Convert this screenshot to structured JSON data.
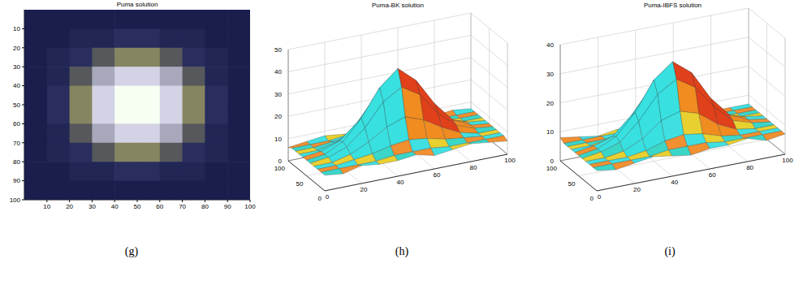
{
  "chart_data": [
    {
      "type": "heatmap",
      "title": "Puma solution",
      "panel": "(g)",
      "x": [
        5,
        15,
        25,
        35,
        45,
        55,
        65,
        75,
        85,
        95
      ],
      "y": [
        5,
        15,
        25,
        35,
        45,
        55,
        65,
        75,
        85,
        95
      ],
      "xlim": [
        0,
        100
      ],
      "ylim": [
        0,
        100
      ],
      "xticks": [
        10,
        20,
        30,
        40,
        50,
        60,
        70,
        80,
        90,
        100
      ],
      "yticks": [
        10,
        20,
        30,
        40,
        50,
        60,
        70,
        80,
        90,
        100
      ],
      "cells": [
        [
          5,
          5,
          5,
          5,
          5,
          5,
          5,
          5,
          5,
          5
        ],
        [
          5,
          5,
          6,
          6,
          7,
          7,
          6,
          6,
          5,
          5
        ],
        [
          5,
          6,
          7,
          10,
          13,
          13,
          10,
          7,
          6,
          5
        ],
        [
          5,
          6,
          10,
          18,
          25,
          25,
          18,
          10,
          6,
          5
        ],
        [
          5,
          7,
          13,
          25,
          36,
          36,
          25,
          13,
          7,
          5
        ],
        [
          5,
          7,
          13,
          25,
          36,
          36,
          25,
          13,
          7,
          5
        ],
        [
          5,
          6,
          10,
          18,
          25,
          25,
          18,
          10,
          6,
          5
        ],
        [
          5,
          6,
          7,
          10,
          13,
          13,
          10,
          7,
          6,
          5
        ],
        [
          5,
          5,
          6,
          6,
          7,
          7,
          6,
          6,
          5,
          5
        ],
        [
          5,
          5,
          5,
          5,
          5,
          5,
          5,
          5,
          5,
          5
        ]
      ]
    },
    {
      "type": "surface",
      "title": "Puma-BK solution",
      "panel": "(h)",
      "x": [
        0,
        10,
        20,
        30,
        40,
        50,
        60,
        70,
        80,
        90,
        100
      ],
      "y": [
        0,
        10,
        20,
        30,
        40,
        50,
        60,
        70,
        80,
        90,
        100
      ],
      "xlim": [
        0,
        100
      ],
      "ylim": [
        0,
        100
      ],
      "zlim": [
        0,
        50
      ],
      "xticks": [
        0,
        20,
        40,
        60,
        80,
        100
      ],
      "yticks": [
        0,
        50,
        100
      ],
      "zticks": [
        0,
        10,
        20,
        30,
        40,
        50
      ],
      "grid": true,
      "z": [
        [
          7,
          6,
          8,
          7,
          7,
          8,
          6,
          7,
          8,
          7,
          6
        ],
        [
          7,
          7,
          7,
          7,
          8,
          8,
          8,
          7,
          7,
          7,
          7
        ],
        [
          7,
          7,
          8,
          9,
          11,
          12,
          11,
          9,
          8,
          7,
          7
        ],
        [
          7,
          7,
          9,
          13,
          18,
          21,
          18,
          13,
          9,
          7,
          7
        ],
        [
          7,
          8,
          11,
          18,
          28,
          33,
          28,
          18,
          11,
          8,
          7
        ],
        [
          7,
          8,
          12,
          21,
          33,
          40,
          33,
          21,
          12,
          8,
          7
        ],
        [
          7,
          8,
          11,
          18,
          28,
          33,
          29,
          18,
          11,
          8,
          7
        ],
        [
          7,
          7,
          9,
          13,
          18,
          21,
          18,
          14,
          9,
          7,
          7
        ],
        [
          7,
          7,
          8,
          9,
          11,
          12,
          11,
          9,
          8,
          7,
          7
        ],
        [
          7,
          7,
          7,
          8,
          8,
          8,
          8,
          7,
          7,
          7,
          7
        ],
        [
          6,
          7,
          8,
          7,
          6,
          7,
          8,
          7,
          7,
          8,
          7
        ]
      ]
    },
    {
      "type": "surface",
      "title": "Puma-IBFS solution",
      "panel": "(i)",
      "x": [
        0,
        10,
        20,
        30,
        40,
        50,
        60,
        70,
        80,
        90,
        100
      ],
      "y": [
        0,
        10,
        20,
        30,
        40,
        50,
        60,
        70,
        80,
        90,
        100
      ],
      "xlim": [
        0,
        100
      ],
      "ylim": [
        0,
        100
      ],
      "zlim": [
        0,
        40
      ],
      "xticks": [
        0,
        20,
        40,
        60,
        80,
        100
      ],
      "yticks": [
        0,
        50,
        100
      ],
      "zticks": [
        0,
        10,
        20,
        30,
        40
      ],
      "grid": true,
      "z": [
        [
          7,
          6,
          7,
          8,
          7,
          6,
          7,
          7,
          8,
          6,
          7
        ],
        [
          7,
          7,
          7,
          7,
          8,
          8,
          8,
          7,
          7,
          7,
          7
        ],
        [
          7,
          7,
          7,
          8,
          10,
          11,
          10,
          8,
          7,
          7,
          7
        ],
        [
          7,
          7,
          8,
          11,
          16,
          18,
          16,
          11,
          8,
          7,
          7
        ],
        [
          7,
          8,
          10,
          16,
          24,
          28,
          24,
          16,
          10,
          8,
          7
        ],
        [
          7,
          8,
          11,
          18,
          28,
          33,
          28,
          18,
          11,
          8,
          7
        ],
        [
          7,
          8,
          10,
          16,
          24,
          28,
          24,
          16,
          10,
          8,
          7
        ],
        [
          7,
          7,
          8,
          11,
          16,
          18,
          16,
          11,
          8,
          7,
          7
        ],
        [
          7,
          7,
          7,
          8,
          10,
          11,
          10,
          8,
          7,
          7,
          7
        ],
        [
          7,
          7,
          7,
          7,
          8,
          8,
          8,
          7,
          7,
          7,
          7
        ],
        [
          8,
          7,
          6,
          7,
          7,
          8,
          7,
          6,
          7,
          7,
          7
        ]
      ]
    }
  ]
}
